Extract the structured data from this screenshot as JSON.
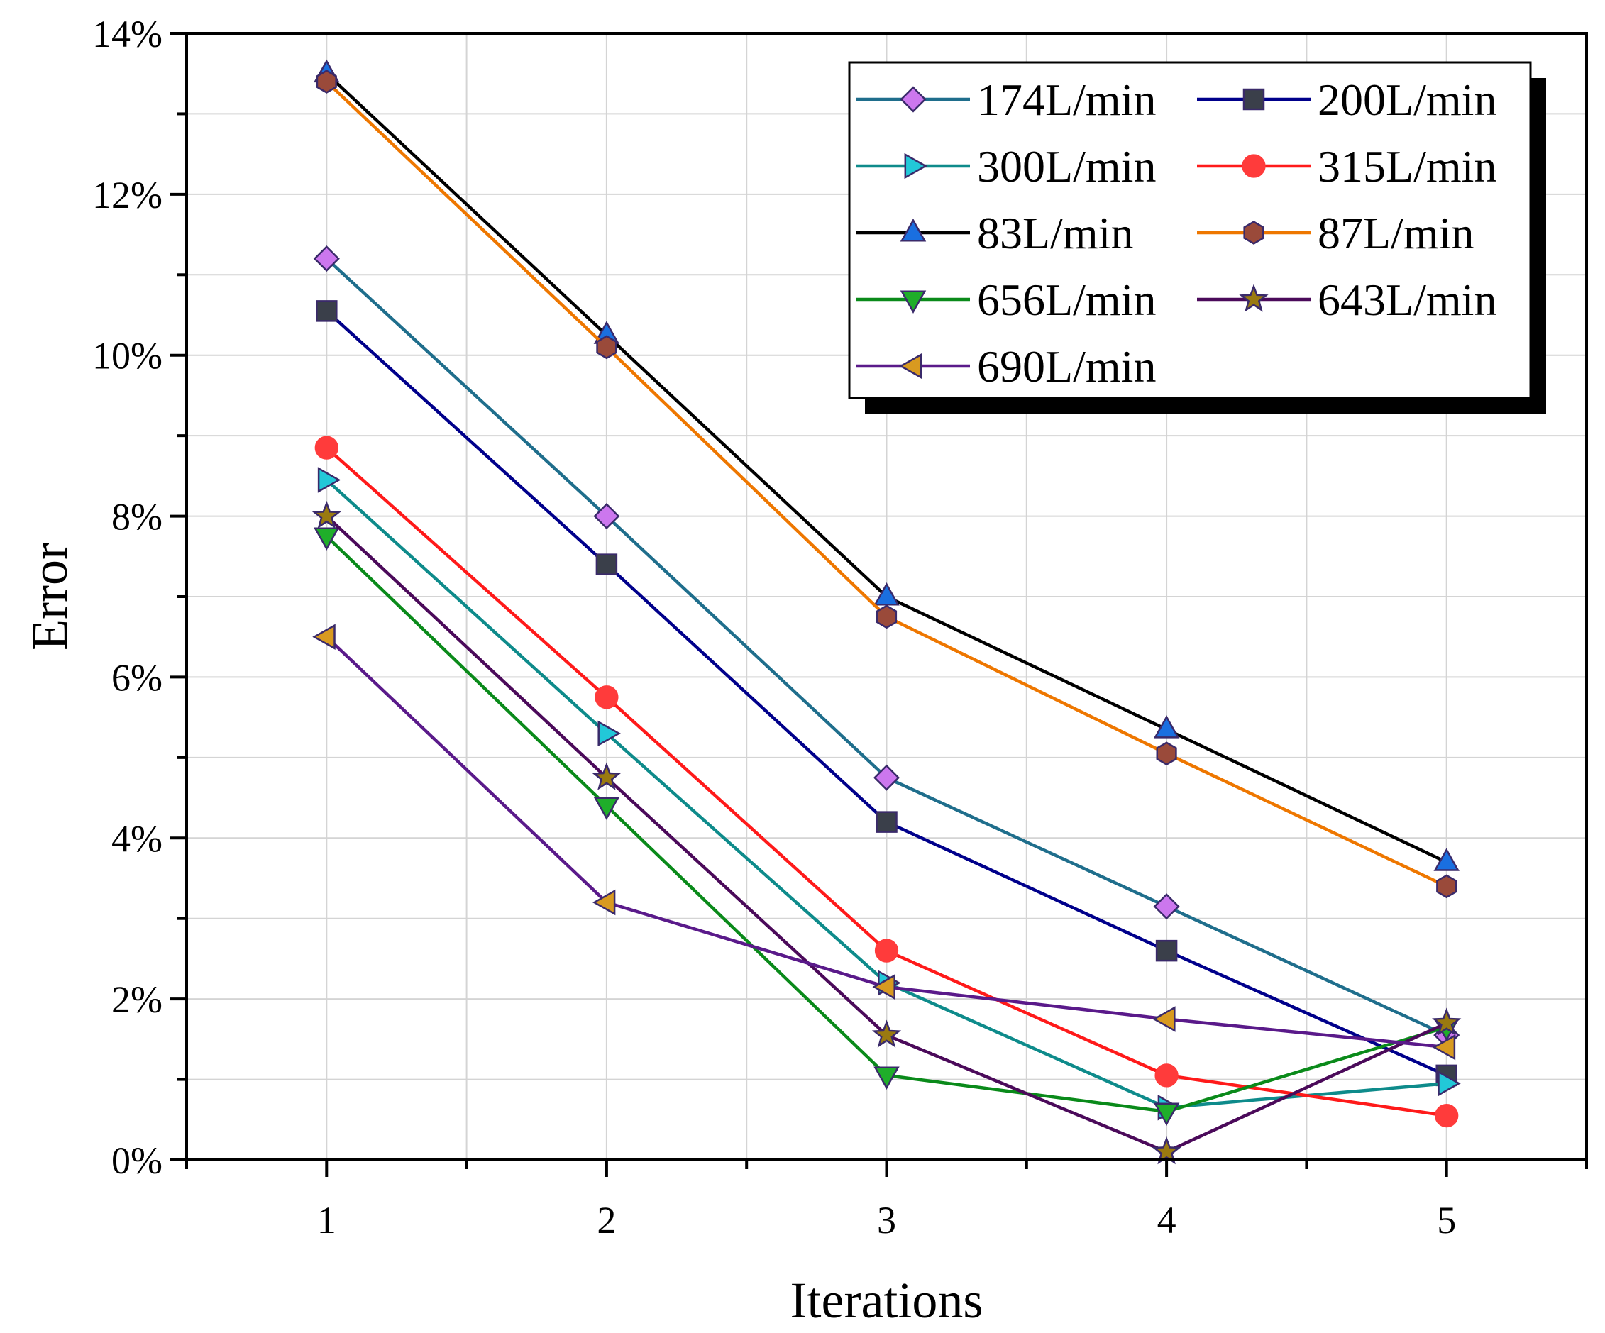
{
  "chart_data": {
    "type": "line",
    "title": "",
    "xlabel": "Iterations",
    "ylabel": "Error",
    "x": [
      1,
      2,
      3,
      4,
      5
    ],
    "xlim": [
      0.5,
      5.5
    ],
    "ylim": [
      0,
      14
    ],
    "y_ticks": [
      0,
      2,
      4,
      6,
      8,
      10,
      12,
      14
    ],
    "y_tick_labels": [
      "0%",
      "2%",
      "4%",
      "6%",
      "8%",
      "10%",
      "12%",
      "14%"
    ],
    "x_tick_labels": [
      "1",
      "2",
      "3",
      "4",
      "5"
    ],
    "grid": true,
    "legend_position": "top-right",
    "series": [
      {
        "name": "174L/min",
        "color": "#1f6e8c",
        "marker": "diamond",
        "marker_fill": "#cc77ee",
        "values": [
          11.2,
          8.0,
          4.75,
          3.15,
          1.55
        ]
      },
      {
        "name": "200L/min",
        "color": "#00008b",
        "marker": "square",
        "marker_fill": "#3a3f4a",
        "values": [
          10.55,
          7.4,
          4.2,
          2.6,
          1.05
        ]
      },
      {
        "name": "300L/min",
        "color": "#0e8b8b",
        "marker": "triangle-right",
        "marker_fill": "#22c8d8",
        "values": [
          8.45,
          5.3,
          2.2,
          0.65,
          0.95
        ]
      },
      {
        "name": "315L/min",
        "color": "#ff1a1a",
        "marker": "circle",
        "marker_fill": "#ff3b3b",
        "values": [
          8.85,
          5.75,
          2.6,
          1.05,
          0.55
        ]
      },
      {
        "name": "83L/min",
        "color": "#000000",
        "marker": "triangle-up",
        "marker_fill": "#1a6fe0",
        "values": [
          13.5,
          10.25,
          7.0,
          5.35,
          3.7
        ]
      },
      {
        "name": "87L/min",
        "color": "#ee7700",
        "marker": "hexagon",
        "marker_fill": "#9a4a3a",
        "values": [
          13.4,
          10.1,
          6.75,
          5.05,
          3.4
        ]
      },
      {
        "name": "656L/min",
        "color": "#0a8a1a",
        "marker": "triangle-down",
        "marker_fill": "#1fae2a",
        "values": [
          7.75,
          4.4,
          1.05,
          0.6,
          1.65
        ]
      },
      {
        "name": "643L/min",
        "color": "#4b0a5a",
        "marker": "star",
        "marker_fill": "#9a7a10",
        "values": [
          8.0,
          4.75,
          1.55,
          0.1,
          1.7
        ]
      },
      {
        "name": "690L/min",
        "color": "#5a1a8a",
        "marker": "triangle-left",
        "marker_fill": "#d89a20",
        "values": [
          6.5,
          3.2,
          2.15,
          1.75,
          1.4
        ]
      }
    ]
  }
}
